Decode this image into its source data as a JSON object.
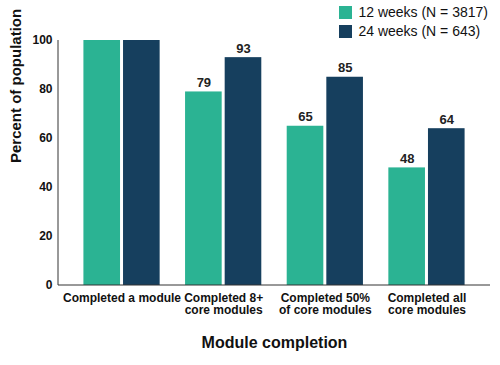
{
  "chart_data": {
    "type": "bar",
    "categories": [
      "Completed a module",
      "Completed 8+ core modules",
      "Completed 50% of core modules",
      "Completed all core modules"
    ],
    "series": [
      {
        "name": "12 weeks (N = 3817)",
        "color": "#2bb393",
        "values": [
          100,
          79,
          65,
          48
        ],
        "value_labels": [
          null,
          "79",
          "65",
          "48"
        ]
      },
      {
        "name": "24 weeks (N = 643)",
        "color": "#163f5e",
        "values": [
          100,
          93,
          85,
          64
        ],
        "value_labels": [
          null,
          "93",
          "85",
          "64"
        ]
      }
    ],
    "x_label": "Module completion",
    "y_label": "Percent of population",
    "ylim": [
      0,
      100
    ],
    "yticks": [
      0,
      20,
      40,
      60,
      80,
      100
    ],
    "grid": false,
    "legend": "top-right",
    "data_labels": true
  }
}
